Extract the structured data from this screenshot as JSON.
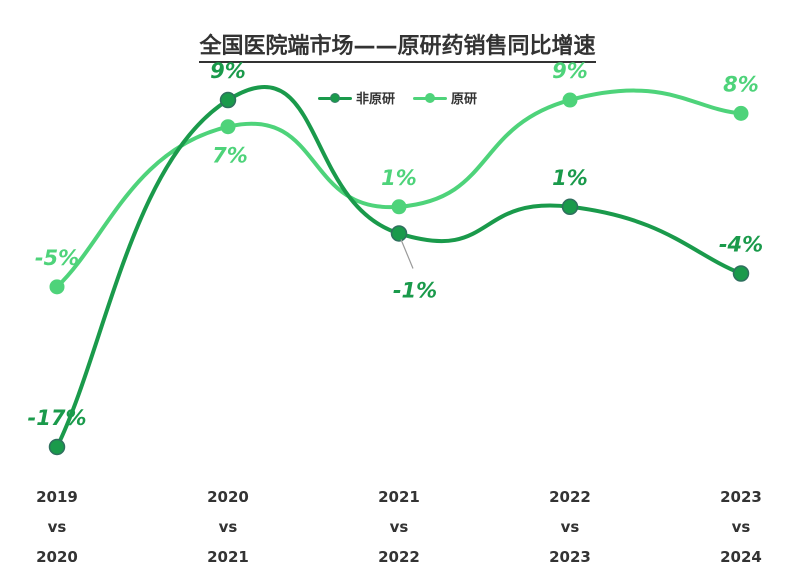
{
  "title": "全国医院端市场——原研药销售同比增速",
  "chart_data": {
    "type": "line",
    "title": "全国医院端市场——原研药销售同比增速",
    "categories": [
      [
        "2019",
        "vs",
        "2020"
      ],
      [
        "2020",
        "vs",
        "2021"
      ],
      [
        "2021",
        "vs",
        "2022"
      ],
      [
        "2022",
        "vs",
        "2023"
      ],
      [
        "2023",
        "vs",
        "2024"
      ]
    ],
    "series": [
      {
        "name": "非原研",
        "color": "#1a9a4b",
        "values": [
          -17,
          9,
          -1,
          1,
          -4
        ],
        "labels": [
          "-17%",
          "9%",
          "-1%",
          "1%",
          "-4%"
        ],
        "label_positions": [
          "above",
          "above",
          "below",
          "above",
          "above"
        ]
      },
      {
        "name": "原研",
        "color": "#4ed37a",
        "values": [
          -5,
          7,
          1,
          9,
          8
        ],
        "labels": [
          "-5%",
          "7%",
          "1%",
          "9%",
          "8%"
        ],
        "label_positions": [
          "above",
          "below",
          "above",
          "above",
          "above"
        ]
      }
    ],
    "smooth": true,
    "ylim": [
      -20,
      12
    ],
    "grid": false,
    "legend_position": "top-center",
    "xlabel": "",
    "ylabel": ""
  }
}
